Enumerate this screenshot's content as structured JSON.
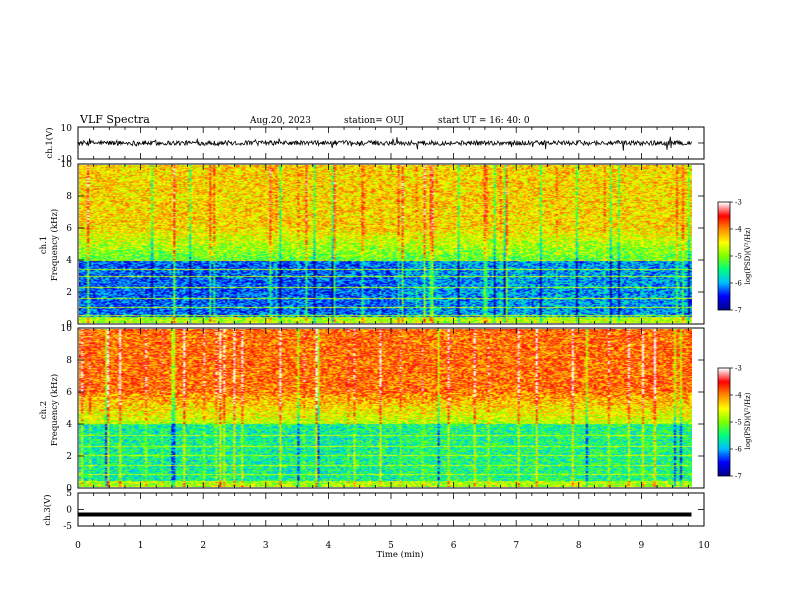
{
  "header": {
    "title": "VLF Spectra",
    "date": "Aug.20, 2023",
    "station": "station= OUJ",
    "start": "start  UT =   16: 40: 0"
  },
  "chart_data": [
    {
      "type": "line",
      "panel": "ch1-waveform",
      "ylabel": "ch.1(V)",
      "ylim": [
        -10,
        10
      ],
      "yticks": [
        "10",
        "-10"
      ],
      "xlim": [
        0,
        10
      ],
      "series": [
        {
          "x_range": [
            0,
            9.8
          ],
          "baseline": 0,
          "typical_amplitude": 1.5,
          "max_amplitude": 5
        }
      ],
      "color": "#000000"
    },
    {
      "type": "heatmap",
      "panel": "ch1-spectrogram",
      "ylabel": "Frequency (kHz)",
      "channel_label": "ch.1",
      "ylim": [
        0,
        10
      ],
      "yticks": [
        "0",
        "2",
        "4",
        "6",
        "8",
        "10"
      ],
      "xlim": [
        0,
        10
      ],
      "time_extent": [
        0,
        9.8
      ],
      "colorbar": {
        "label": "log(PSD)(V²/Hz)",
        "range": [
          -7,
          -3
        ],
        "ticks": [
          "-3",
          "-4",
          "-5",
          "-6",
          "-7"
        ]
      },
      "colormap": [
        "#00008b",
        "#0000ff",
        "#00bfff",
        "#00ff7f",
        "#7fff00",
        "#ffff00",
        "#ff8c00",
        "#ff0000",
        "#ffffff"
      ],
      "features": {
        "transition_time": 5.2,
        "low_band_kHz": [
          0,
          4
        ],
        "noise_lines_kHz": [
          0.5,
          1.0,
          1.6,
          2.3,
          3.0,
          3.4,
          4.0
        ]
      }
    },
    {
      "type": "heatmap",
      "panel": "ch2-spectrogram",
      "ylabel": "Frequency (kHz)",
      "channel_label": "ch.2",
      "ylim": [
        0,
        10
      ],
      "yticks": [
        "0",
        "2",
        "4",
        "6",
        "8",
        "10"
      ],
      "xlim": [
        0,
        10
      ],
      "time_extent": [
        0,
        9.8
      ],
      "colorbar": {
        "label": "log(PSD)(V²/Hz)",
        "range": [
          -7,
          -3
        ],
        "ticks": [
          "-3",
          "-4",
          "-5",
          "-6",
          "-7"
        ]
      },
      "colormap": [
        "#00008b",
        "#0000ff",
        "#00bfff",
        "#00ff7f",
        "#7fff00",
        "#ffff00",
        "#ff8c00",
        "#ff0000",
        "#ffffff"
      ],
      "features": {
        "transition_time": 5.2,
        "low_band_kHz": [
          0,
          4
        ],
        "noise_lines_kHz": [
          0.8,
          1.4,
          2.0,
          2.6,
          3.3,
          4.2
        ]
      }
    },
    {
      "type": "line",
      "panel": "ch3-waveform",
      "ylabel": "ch.3(V)",
      "ylim": [
        -5,
        5
      ],
      "yticks": [
        "5",
        "0",
        "-5"
      ],
      "xlim": [
        0,
        10
      ],
      "series": [
        {
          "x_range": [
            0,
            9.8
          ],
          "baseline": -1.5,
          "typical_amplitude": 0.1
        }
      ],
      "color": "#000000"
    }
  ],
  "xaxis": {
    "label": "Time (min)",
    "ticks": [
      "0",
      "1",
      "2",
      "3",
      "4",
      "5",
      "6",
      "7",
      "8",
      "9",
      "10"
    ]
  }
}
